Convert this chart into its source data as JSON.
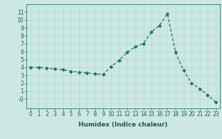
{
  "x": [
    0,
    1,
    2,
    3,
    4,
    5,
    6,
    7,
    8,
    9,
    10,
    11,
    12,
    13,
    14,
    15,
    16,
    17,
    18,
    19,
    20,
    21,
    22,
    23
  ],
  "y": [
    4.0,
    4.0,
    3.9,
    3.8,
    3.7,
    3.5,
    3.4,
    3.3,
    3.2,
    3.1,
    4.1,
    4.9,
    5.9,
    6.6,
    7.0,
    8.5,
    9.3,
    10.8,
    5.9,
    3.6,
    2.0,
    1.3,
    0.5,
    -0.4
  ],
  "line_color": "#1a7a6a",
  "marker": "D",
  "marker_size": 2.0,
  "bg_color": "#cce8e4",
  "grid_color": "#b8d8d4",
  "xlabel": "Humidex (Indice chaleur)",
  "xlabel_fontsize": 6.5,
  "xlim": [
    -0.5,
    23.5
  ],
  "ylim": [
    -1.2,
    12
  ],
  "yticks": [
    0,
    1,
    2,
    3,
    4,
    5,
    6,
    7,
    8,
    9,
    10,
    11
  ],
  "ytick_labels": [
    "-0",
    "1",
    "2",
    "3",
    "4",
    "5",
    "6",
    "7",
    "8",
    "9",
    "10",
    "11"
  ],
  "xticks": [
    0,
    1,
    2,
    3,
    4,
    5,
    6,
    7,
    8,
    9,
    10,
    11,
    12,
    13,
    14,
    15,
    16,
    17,
    18,
    19,
    20,
    21,
    22,
    23
  ],
  "tick_fontsize": 5.5,
  "linewidth": 1.0,
  "label_color": "#1a5a50"
}
